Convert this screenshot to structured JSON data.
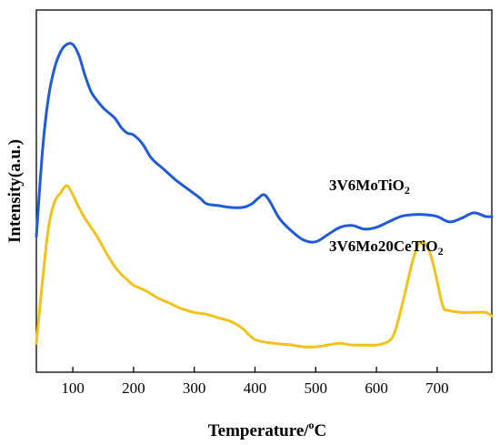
{
  "chart_data": {
    "type": "line",
    "xlabel": "Temperature/",
    "xlabel_unit_sup": "o",
    "xlabel_unit_tail": "C",
    "ylabel": "Intensity(a.u.)",
    "xlim": [
      40,
      790
    ],
    "ylim": [
      0,
      100
    ],
    "xticks": [
      100,
      200,
      300,
      400,
      500,
      600,
      700
    ],
    "yticks_shown": false,
    "series": [
      {
        "name": "3V6MoTiO",
        "name_sub": "2",
        "color": "#1f5bd8",
        "x": [
          40,
          50,
          60,
          70,
          80,
          90,
          100,
          110,
          120,
          130,
          140,
          150,
          160,
          170,
          180,
          190,
          200,
          215,
          230,
          250,
          270,
          290,
          310,
          320,
          340,
          360,
          380,
          395,
          405,
          415,
          425,
          440,
          460,
          480,
          500,
          520,
          540,
          560,
          580,
          600,
          620,
          640,
          660,
          680,
          700,
          720,
          740,
          760,
          780,
          790
        ],
        "y": [
          37.5,
          61,
          76,
          84,
          88.5,
          90.5,
          90.5,
          87.5,
          82,
          77.5,
          75,
          73,
          71.5,
          70,
          67.5,
          66,
          65.5,
          63,
          59,
          56,
          53,
          50.5,
          48,
          46.5,
          46,
          45.5,
          45.5,
          46.5,
          48,
          49,
          47,
          42.5,
          39,
          36.5,
          36,
          38,
          40,
          40.5,
          39.5,
          40,
          41.5,
          43,
          43.5,
          43.5,
          43,
          41.5,
          42.5,
          44,
          43,
          43
        ]
      },
      {
        "name": "3V6Mo20CeTiO",
        "name_sub": "2",
        "color": "#f2c21b",
        "x": [
          40,
          50,
          60,
          70,
          80,
          90,
          100,
          110,
          120,
          130,
          140,
          150,
          160,
          170,
          180,
          190,
          200,
          220,
          240,
          260,
          280,
          300,
          320,
          340,
          360,
          380,
          400,
          430,
          460,
          480,
          500,
          520,
          540,
          560,
          580,
          600,
          620,
          630,
          640,
          650,
          660,
          670,
          680,
          690,
          700,
          710,
          720,
          740,
          760,
          780,
          790
        ],
        "y": [
          8,
          25,
          40,
          47,
          49.5,
          51.5,
          49,
          45.5,
          42.5,
          40,
          37.5,
          34.5,
          31.5,
          29,
          27,
          25.5,
          24,
          22.5,
          20.5,
          19,
          17.5,
          16.5,
          16,
          15,
          14,
          12,
          9,
          8,
          7.5,
          7,
          7,
          7.5,
          8,
          7.5,
          7.5,
          7.5,
          8.5,
          11,
          17,
          24,
          31,
          35.5,
          35.5,
          32,
          25,
          18,
          17,
          16.5,
          16.5,
          16.5,
          15.5
        ]
      }
    ]
  }
}
